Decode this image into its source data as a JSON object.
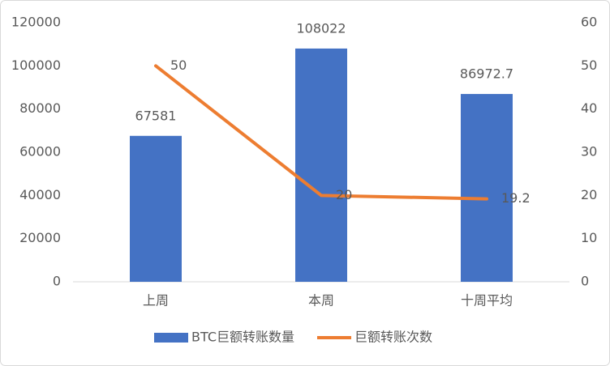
{
  "chart_data": {
    "type": "bar",
    "categories": [
      "上周",
      "本周",
      "十周平均"
    ],
    "series": [
      {
        "name": "BTC巨额转账数量",
        "type": "bar",
        "color": "#4472c4",
        "values": [
          67581,
          108022,
          86972.7
        ]
      },
      {
        "name": "巨额转账次数",
        "type": "line",
        "axis": "y2",
        "color": "#ed7d31",
        "values": [
          50,
          20,
          19.2
        ]
      }
    ],
    "ylim": [
      0,
      120000
    ],
    "yticks": [
      0,
      20000,
      40000,
      60000,
      80000,
      100000,
      120000
    ],
    "y2lim": [
      0,
      60
    ],
    "y2ticks": [
      0,
      10,
      20,
      30,
      40,
      50,
      60
    ],
    "grid": false,
    "legend": "bottom"
  }
}
